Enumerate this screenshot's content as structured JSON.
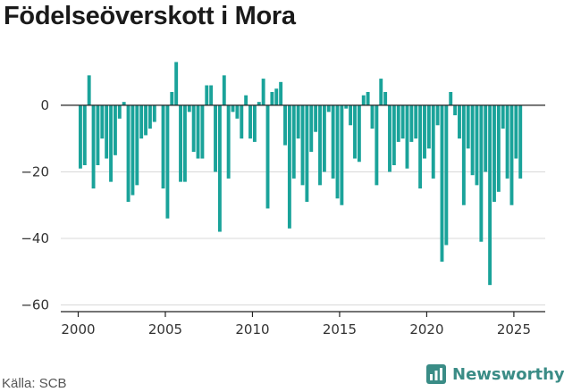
{
  "title": "Födelseöverskott i Mora",
  "source": "Källa: SCB",
  "brand": "Newsworthy",
  "colors": {
    "bar": "#1aa39a",
    "grid": "#d9d9d9",
    "zero": "#222222",
    "brand": "#3a8c86"
  },
  "chart_data": {
    "type": "bar",
    "title": "Födelseöverskott i Mora",
    "xlabel": "",
    "ylabel": "",
    "ylim": [
      -62,
      15
    ],
    "xlim": [
      1999.0,
      2026.8
    ],
    "xticks": [
      2000,
      2005,
      2010,
      2015,
      2020,
      2025
    ],
    "yticks": [
      0,
      -20,
      -40,
      -60
    ],
    "grid": true,
    "frequency": "quarterly",
    "start": 2000.125,
    "step": 0.25,
    "values": [
      -19,
      -18,
      9,
      -25,
      -18,
      -10,
      -16,
      -23,
      -15,
      -4,
      1,
      -29,
      -27,
      -24,
      -10,
      -9,
      -7,
      -5,
      0,
      -25,
      -34,
      4,
      13,
      -23,
      -23,
      -2,
      -14,
      -16,
      -16,
      6,
      6,
      -20,
      -38,
      9,
      -22,
      -2,
      -4,
      -10,
      3,
      -10,
      -11,
      1,
      8,
      -31,
      4,
      5,
      7,
      -12,
      -37,
      -22,
      -10,
      -24,
      -29,
      -14,
      -8,
      -24,
      -20,
      -2,
      -22,
      -28,
      -30,
      -1,
      -6,
      -16,
      -17,
      3,
      4,
      -7,
      -24,
      8,
      4,
      -20,
      -18,
      -11,
      -10,
      -19,
      -11,
      -10,
      -25,
      -16,
      -13,
      -22,
      -6,
      -47,
      -42,
      4,
      -3,
      -10,
      -30,
      -13,
      -21,
      -24,
      -41,
      -20,
      -54,
      -29,
      -26,
      -7,
      -22,
      -30,
      -16,
      -22
    ]
  }
}
